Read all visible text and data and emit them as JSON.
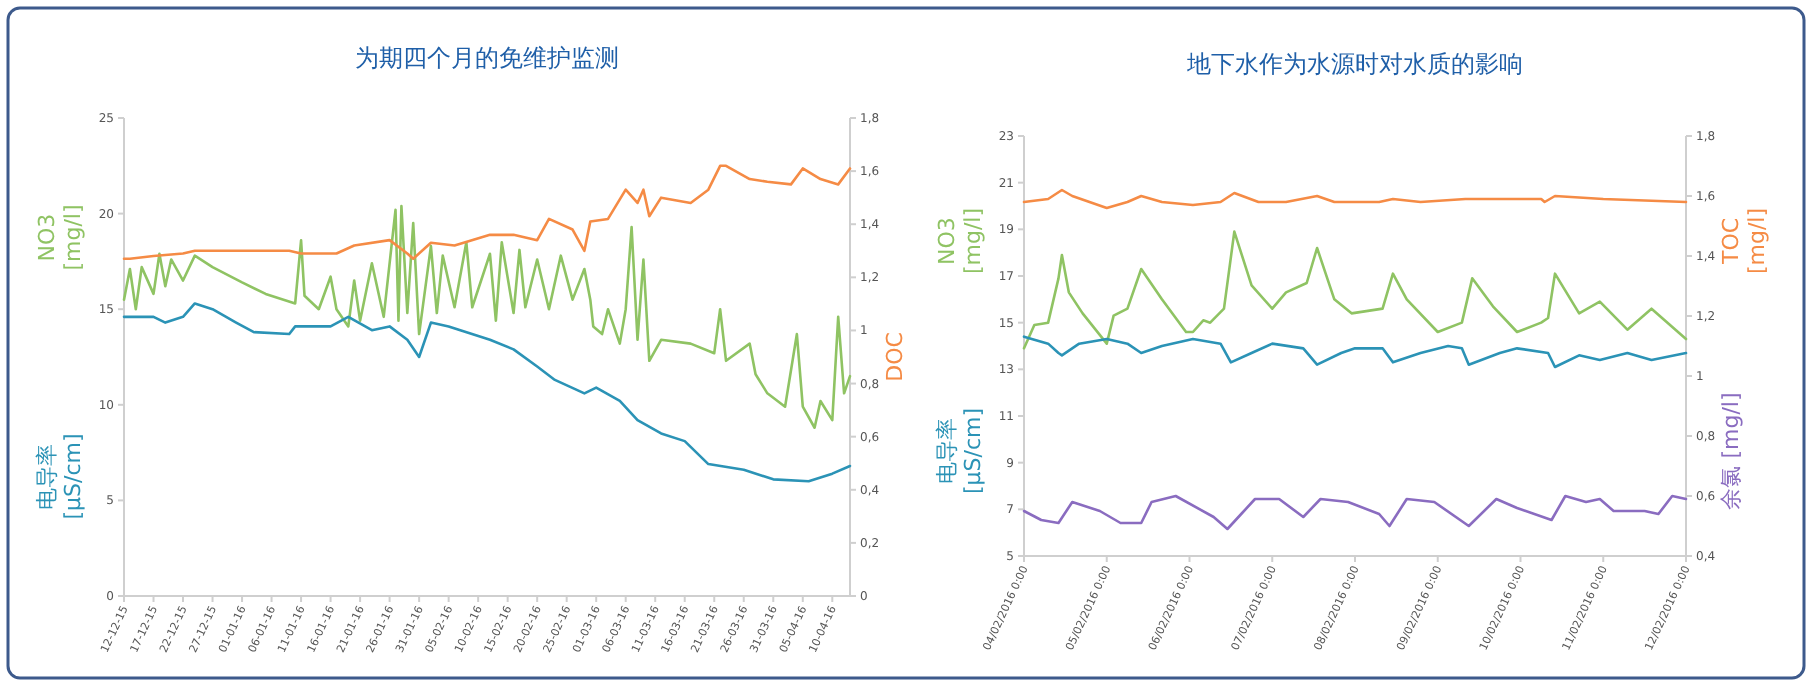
{
  "chart_data": [
    {
      "type": "line",
      "title": "为期四个月的免维护监测",
      "xlim": [
        "2015-12-12",
        "2016-04-13"
      ],
      "xticks": [
        {
          "value": "2015-12-12",
          "label": "12-12-15"
        },
        {
          "value": "2015-12-17",
          "label": "17-12-15"
        },
        {
          "value": "2015-12-22",
          "label": "22-12-15"
        },
        {
          "value": "2015-12-27",
          "label": "27-12-15"
        },
        {
          "value": "2016-01-01",
          "label": "01-01-16"
        },
        {
          "value": "2016-01-06",
          "label": "06-01-16"
        },
        {
          "value": "2016-01-11",
          "label": "11-01-16"
        },
        {
          "value": "2016-01-16",
          "label": "16-01-16"
        },
        {
          "value": "2016-01-21",
          "label": "21-01-16"
        },
        {
          "value": "2016-01-26",
          "label": "26-01-16"
        },
        {
          "value": "2016-01-31",
          "label": "31-01-16"
        },
        {
          "value": "2016-02-05",
          "label": "05-02-16"
        },
        {
          "value": "2016-02-10",
          "label": "10-02-16"
        },
        {
          "value": "2016-02-15",
          "label": "15-02-16"
        },
        {
          "value": "2016-02-20",
          "label": "20-02-16"
        },
        {
          "value": "2016-02-25",
          "label": "25-02-16"
        },
        {
          "value": "2016-03-01",
          "label": "01-03-16"
        },
        {
          "value": "2016-03-06",
          "label": "06-03-16"
        },
        {
          "value": "2016-03-11",
          "label": "11-03-16"
        },
        {
          "value": "2016-03-16",
          "label": "16-03-16"
        },
        {
          "value": "2016-03-21",
          "label": "21-03-16"
        },
        {
          "value": "2016-03-26",
          "label": "26-03-16"
        },
        {
          "value": "2016-03-31",
          "label": "31-03-16"
        },
        {
          "value": "2016-04-05",
          "label": "05-04-16"
        },
        {
          "value": "2016-04-10",
          "label": "10-04-16"
        }
      ],
      "ylim": [
        0,
        25
      ],
      "yticks": [
        0,
        5,
        10,
        15,
        20,
        25
      ],
      "y2lim": [
        0,
        1.8
      ],
      "y2ticks": [
        {
          "value": 0,
          "label": "0"
        },
        {
          "value": 0.2,
          "label": "0,2"
        },
        {
          "value": 0.4,
          "label": "0,4"
        },
        {
          "value": 0.6,
          "label": "0,6"
        },
        {
          "value": 0.8,
          "label": "0,8"
        },
        {
          "value": 1,
          "label": "1"
        },
        {
          "value": 1.2,
          "label": "1,2"
        },
        {
          "value": 1.4,
          "label": "1,4"
        },
        {
          "value": 1.6,
          "label": "1,6"
        },
        {
          "value": 1.8,
          "label": "1,8"
        }
      ],
      "series": [
        {
          "name": "NO3\n[mg/l]",
          "color": "#8fc363",
          "axis": "y",
          "x": [
            "2015-12-12T00:00",
            "2015-12-13T00:00",
            "2015-12-14T00:00",
            "2015-12-15T00:00",
            "2015-12-17T00:00",
            "2015-12-18T00:00",
            "2015-12-19T00:00",
            "2015-12-20T00:00",
            "2015-12-22T00:00",
            "2015-12-24T00:00",
            "2015-12-27T00:00",
            "2016-01-01T00:00",
            "2016-01-05T00:00",
            "2016-01-10T00:00",
            "2016-01-11T00:00",
            "2016-01-11T14:00",
            "2016-01-14T00:00",
            "2016-01-16T00:00",
            "2016-01-17T00:00",
            "2016-01-19T00:00",
            "2016-01-20T00:00",
            "2016-01-21T00:00",
            "2016-01-23T00:00",
            "2016-01-25T00:00",
            "2016-01-26T00:00",
            "2016-01-27T00:00",
            "2016-01-27T12:00",
            "2016-01-28T00:00",
            "2016-01-29T00:00",
            "2016-01-30T00:00",
            "2016-01-31T00:00",
            "2016-02-02T00:00",
            "2016-02-03T00:00",
            "2016-02-04T00:00",
            "2016-02-06T00:00",
            "2016-02-08T00:00",
            "2016-02-09T00:00",
            "2016-02-12T00:00",
            "2016-02-13T00:00",
            "2016-02-14T00:00",
            "2016-02-16T00:00",
            "2016-02-17T00:00",
            "2016-02-18T00:00",
            "2016-02-20T00:00",
            "2016-02-22T00:00",
            "2016-02-24T00:00",
            "2016-02-26T00:00",
            "2016-02-28T00:00",
            "2016-02-29T00:00",
            "2016-02-29T12:00",
            "2016-03-02T00:00",
            "2016-03-03T00:00",
            "2016-03-05T00:00",
            "2016-03-06T00:00",
            "2016-03-07T00:00",
            "2016-03-08T00:00",
            "2016-03-09T00:00",
            "2016-03-10T00:00",
            "2016-03-12T00:00",
            "2016-03-17T00:00",
            "2016-03-21T00:00",
            "2016-03-22T00:00",
            "2016-03-23T00:00",
            "2016-03-27T00:00",
            "2016-03-28T00:00",
            "2016-03-30T00:00",
            "2016-04-02T00:00",
            "2016-04-04T00:00",
            "2016-04-05T00:00",
            "2016-04-07T00:00",
            "2016-04-08T00:00",
            "2016-04-10T00:00",
            "2016-04-11T00:00",
            "2016-04-12T00:00",
            "2016-04-13T00:00"
          ],
          "values": [
            15.5,
            17.1,
            15.0,
            17.2,
            15.8,
            17.9,
            16.2,
            17.6,
            16.5,
            17.8,
            17.2,
            16.4,
            15.8,
            15.3,
            18.6,
            15.7,
            15.0,
            16.7,
            15.0,
            14.1,
            16.5,
            14.4,
            17.4,
            14.6,
            17.4,
            20.2,
            14.4,
            20.4,
            14.8,
            19.5,
            13.7,
            18.3,
            14.8,
            17.8,
            15.1,
            18.5,
            15.1,
            17.9,
            14.4,
            18.5,
            14.8,
            18.1,
            15.1,
            17.6,
            15.0,
            17.8,
            15.5,
            17.1,
            15.5,
            14.1,
            13.7,
            15.0,
            13.2,
            15.0,
            19.3,
            13.4,
            17.6,
            12.3,
            13.4,
            13.2,
            12.7,
            15.0,
            12.3,
            13.2,
            11.6,
            10.6,
            9.9,
            13.7,
            9.9,
            8.8,
            10.2,
            9.2,
            14.6,
            10.6,
            11.5
          ]
        },
        {
          "name": "电导率\n[µS/cm]",
          "color": "#2b93b6",
          "axis": "y",
          "x": [
            "2015-12-12",
            "2015-12-17",
            "2015-12-19",
            "2015-12-22",
            "2015-12-24",
            "2015-12-27",
            "2015-12-31",
            "2016-01-03",
            "2016-01-09",
            "2016-01-10",
            "2016-01-16",
            "2016-01-19",
            "2016-01-23",
            "2016-01-26",
            "2016-01-29",
            "2016-01-31",
            "2016-02-02",
            "2016-02-05",
            "2016-02-12",
            "2016-02-16",
            "2016-02-20",
            "2016-02-23",
            "2016-02-28",
            "2016-03-01",
            "2016-03-05",
            "2016-03-08",
            "2016-03-12",
            "2016-03-16",
            "2016-03-20",
            "2016-03-26",
            "2016-03-31",
            "2016-04-06",
            "2016-04-10",
            "2016-04-13"
          ],
          "values": [
            14.6,
            14.6,
            14.3,
            14.6,
            15.3,
            15.0,
            14.3,
            13.8,
            13.7,
            14.1,
            14.1,
            14.6,
            13.9,
            14.1,
            13.4,
            12.5,
            14.3,
            14.1,
            13.4,
            12.9,
            12.0,
            11.3,
            10.6,
            10.9,
            10.2,
            9.2,
            8.5,
            8.1,
            6.9,
            6.6,
            6.1,
            6.0,
            6.4,
            6.8
          ]
        },
        {
          "name": "DOC",
          "color": "#f58b45",
          "axis": "y2",
          "x": [
            "2015-12-12",
            "2015-12-13",
            "2015-12-17",
            "2015-12-22",
            "2015-12-24",
            "2015-12-28",
            "2016-01-09",
            "2016-01-11",
            "2016-01-17",
            "2016-01-20",
            "2016-01-26",
            "2016-01-29",
            "2016-01-30",
            "2016-02-02",
            "2016-02-06",
            "2016-02-12",
            "2016-02-16",
            "2016-02-20",
            "2016-02-22",
            "2016-02-26",
            "2016-02-28",
            "2016-02-29",
            "2016-03-03",
            "2016-03-06",
            "2016-03-08",
            "2016-03-09",
            "2016-03-10",
            "2016-03-12",
            "2016-03-17",
            "2016-03-20",
            "2016-03-22",
            "2016-03-23",
            "2016-03-27",
            "2016-03-30",
            "2016-04-03",
            "2016-04-05",
            "2016-04-08",
            "2016-04-11",
            "2016-04-13"
          ],
          "values": [
            1.27,
            1.27,
            1.28,
            1.29,
            1.3,
            1.3,
            1.3,
            1.29,
            1.29,
            1.32,
            1.34,
            1.29,
            1.27,
            1.33,
            1.32,
            1.36,
            1.36,
            1.34,
            1.42,
            1.38,
            1.3,
            1.41,
            1.42,
            1.53,
            1.48,
            1.53,
            1.43,
            1.5,
            1.48,
            1.53,
            1.62,
            1.62,
            1.57,
            1.56,
            1.55,
            1.61,
            1.57,
            1.55,
            1.61
          ]
        }
      ]
    },
    {
      "type": "line",
      "title": "地下水作为水源时对水质的影响",
      "xlim": [
        "2016-02-04T00:00",
        "2016-02-12T00:00"
      ],
      "xticks": [
        {
          "value": "2016-02-04T00:00",
          "label": "04/02/2016 0:00"
        },
        {
          "value": "2016-02-05T00:00",
          "label": "05/02/2016 0:00"
        },
        {
          "value": "2016-02-06T00:00",
          "label": "06/02/2016 0:00"
        },
        {
          "value": "2016-02-07T00:00",
          "label": "07/02/2016 0:00"
        },
        {
          "value": "2016-02-08T00:00",
          "label": "08/02/2016 0:00"
        },
        {
          "value": "2016-02-09T00:00",
          "label": "09/02/2016 0:00"
        },
        {
          "value": "2016-02-10T00:00",
          "label": "10/02/2016 0:00"
        },
        {
          "value": "2016-02-11T00:00",
          "label": "11/02/2016 0:00"
        },
        {
          "value": "2016-02-12T00:00",
          "label": "12/02/2016 0:00"
        }
      ],
      "ylim": [
        5,
        23
      ],
      "yticks": [
        5,
        7,
        9,
        11,
        13,
        15,
        17,
        19,
        21,
        23
      ],
      "y2lim": [
        0.4,
        1.8
      ],
      "y2ticks": [
        {
          "value": 0.4,
          "label": "0,4"
        },
        {
          "value": 0.6,
          "label": "0,6"
        },
        {
          "value": 0.8,
          "label": "0,8"
        },
        {
          "value": 1,
          "label": "1"
        },
        {
          "value": 1.2,
          "label": "1,2"
        },
        {
          "value": 1.4,
          "label": "1,4"
        },
        {
          "value": 1.6,
          "label": "1,6"
        },
        {
          "value": 1.8,
          "label": "1,8"
        }
      ],
      "series": [
        {
          "name": "NO3\n[mg/l]",
          "color": "#8fc363",
          "axis": "y",
          "x": [
            "2016-02-04T00:00",
            "2016-02-04T03:00",
            "2016-02-04T07:00",
            "2016-02-04T10:00",
            "2016-02-04T11:00",
            "2016-02-04T13:00",
            "2016-02-04T17:00",
            "2016-02-05T00:00",
            "2016-02-05T02:00",
            "2016-02-05T06:00",
            "2016-02-05T10:00",
            "2016-02-05T16:00",
            "2016-02-05T23:00",
            "2016-02-06T01:00",
            "2016-02-06T04:00",
            "2016-02-06T06:00",
            "2016-02-06T10:00",
            "2016-02-06T13:00",
            "2016-02-06T18:00",
            "2016-02-07T00:00",
            "2016-02-07T04:00",
            "2016-02-07T10:00",
            "2016-02-07T13:00",
            "2016-02-07T18:00",
            "2016-02-07T23:00",
            "2016-02-08T08:00",
            "2016-02-08T11:00",
            "2016-02-08T15:00",
            "2016-02-09T00:00",
            "2016-02-09T07:00",
            "2016-02-09T10:00",
            "2016-02-09T16:00",
            "2016-02-09T23:00",
            "2016-02-10T06:00",
            "2016-02-10T08:00",
            "2016-02-10T10:00",
            "2016-02-10T17:00",
            "2016-02-10T23:00",
            "2016-02-11T07:00",
            "2016-02-11T14:00",
            "2016-02-12T00:00"
          ],
          "values": [
            13.9,
            14.9,
            15.0,
            16.9,
            17.9,
            16.3,
            15.4,
            14.1,
            15.3,
            15.6,
            17.3,
            16.0,
            14.6,
            14.6,
            15.1,
            15.0,
            15.6,
            18.9,
            16.6,
            15.6,
            16.3,
            16.7,
            18.2,
            16.0,
            15.4,
            15.6,
            17.1,
            16.0,
            14.6,
            15.0,
            16.9,
            15.7,
            14.6,
            15.0,
            15.2,
            17.1,
            15.4,
            15.9,
            14.7,
            15.6,
            14.3
          ]
        },
        {
          "name": "电导率\n[µS/cm]",
          "color": "#2b93b6",
          "axis": "y",
          "x": [
            "2016-02-04T00:00",
            "2016-02-04T07:00",
            "2016-02-04T10:00",
            "2016-02-04T11:00",
            "2016-02-04T16:00",
            "2016-02-05T00:00",
            "2016-02-05T06:00",
            "2016-02-05T10:00",
            "2016-02-05T16:00",
            "2016-02-06T01:00",
            "2016-02-06T09:00",
            "2016-02-06T12:00",
            "2016-02-06T18:00",
            "2016-02-07T00:00",
            "2016-02-07T09:00",
            "2016-02-07T13:00",
            "2016-02-07T20:00",
            "2016-02-08T00:00",
            "2016-02-08T08:00",
            "2016-02-08T11:00",
            "2016-02-08T19:00",
            "2016-02-09T03:00",
            "2016-02-09T07:00",
            "2016-02-09T09:00",
            "2016-02-09T18:00",
            "2016-02-09T23:00",
            "2016-02-10T08:00",
            "2016-02-10T10:00",
            "2016-02-10T17:00",
            "2016-02-10T23:00",
            "2016-02-11T07:00",
            "2016-02-11T14:00",
            "2016-02-12T00:00"
          ],
          "values": [
            14.4,
            14.1,
            13.7,
            13.6,
            14.1,
            14.3,
            14.1,
            13.7,
            14.0,
            14.3,
            14.1,
            13.3,
            13.7,
            14.1,
            13.9,
            13.2,
            13.7,
            13.9,
            13.9,
            13.3,
            13.7,
            14.0,
            13.9,
            13.2,
            13.7,
            13.9,
            13.7,
            13.1,
            13.6,
            13.4,
            13.7,
            13.4,
            13.7
          ]
        },
        {
          "name": "TOC\n[mg/l]",
          "color": "#f58b45",
          "axis": "y2",
          "x": [
            "2016-02-04T00:00",
            "2016-02-04T07:00",
            "2016-02-04T11:00",
            "2016-02-04T14:00",
            "2016-02-05T00:00",
            "2016-02-05T06:00",
            "2016-02-05T10:00",
            "2016-02-05T16:00",
            "2016-02-06T01:00",
            "2016-02-06T09:00",
            "2016-02-06T13:00",
            "2016-02-06T20:00",
            "2016-02-07T04:00",
            "2016-02-07T13:00",
            "2016-02-07T18:00",
            "2016-02-08T07:00",
            "2016-02-08T11:00",
            "2016-02-08T19:00",
            "2016-02-09T08:00",
            "2016-02-10T06:00",
            "2016-02-10T07:00",
            "2016-02-10T10:00",
            "2016-02-11T00:00",
            "2016-02-12T00:00"
          ],
          "values": [
            1.58,
            1.59,
            1.62,
            1.6,
            1.56,
            1.58,
            1.6,
            1.58,
            1.57,
            1.58,
            1.61,
            1.58,
            1.58,
            1.6,
            1.58,
            1.58,
            1.59,
            1.58,
            1.59,
            1.59,
            1.58,
            1.6,
            1.59,
            1.58
          ]
        },
        {
          "name": "余氯 [mg/l]",
          "color": "#8a6cc0",
          "axis": "y2",
          "x": [
            "2016-02-04T00:00",
            "2016-02-04T05:00",
            "2016-02-04T10:00",
            "2016-02-04T14:00",
            "2016-02-04T22:00",
            "2016-02-05T04:00",
            "2016-02-05T10:00",
            "2016-02-05T13:00",
            "2016-02-05T20:00",
            "2016-02-06T07:00",
            "2016-02-06T11:00",
            "2016-02-06T15:00",
            "2016-02-06T19:00",
            "2016-02-07T02:00",
            "2016-02-07T09:00",
            "2016-02-07T14:00",
            "2016-02-07T22:00",
            "2016-02-08T07:00",
            "2016-02-08T10:00",
            "2016-02-08T15:00",
            "2016-02-08T23:00",
            "2016-02-09T09:00",
            "2016-02-09T17:00",
            "2016-02-09T23:00",
            "2016-02-10T09:00",
            "2016-02-10T13:00",
            "2016-02-10T19:00",
            "2016-02-10T23:00",
            "2016-02-11T03:00",
            "2016-02-11T12:00",
            "2016-02-11T16:00",
            "2016-02-11T20:00",
            "2016-02-12T00:00"
          ],
          "values": [
            0.55,
            0.52,
            0.51,
            0.58,
            0.55,
            0.51,
            0.51,
            0.58,
            0.6,
            0.53,
            0.49,
            0.54,
            0.59,
            0.59,
            0.53,
            0.59,
            0.58,
            0.54,
            0.5,
            0.59,
            0.58,
            0.5,
            0.59,
            0.56,
            0.52,
            0.6,
            0.58,
            0.59,
            0.55,
            0.55,
            0.54,
            0.6,
            0.59
          ]
        }
      ]
    }
  ]
}
